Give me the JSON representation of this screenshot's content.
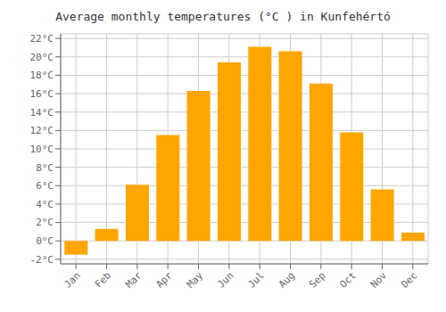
{
  "chart_data": {
    "type": "bar",
    "title": "Average monthly temperatures (°C ) in Kunfehértó",
    "categories": [
      "Jan",
      "Feb",
      "Mar",
      "Apr",
      "May",
      "Jun",
      "Jul",
      "Aug",
      "Sep",
      "Oct",
      "Nov",
      "Dec"
    ],
    "values": [
      -1.5,
      1.3,
      6.1,
      11.5,
      16.3,
      19.4,
      21.1,
      20.6,
      17.1,
      11.8,
      5.6,
      0.9
    ],
    "color": "#FFA500",
    "ylim": [
      -2.5,
      22.5
    ],
    "yticks": [
      {
        "value": -2,
        "label": "-2°C"
      },
      {
        "value": 0,
        "label": "0°C"
      },
      {
        "value": 2,
        "label": "2°C"
      },
      {
        "value": 4,
        "label": "4°C"
      },
      {
        "value": 6,
        "label": "6°C"
      },
      {
        "value": 8,
        "label": "8°C"
      },
      {
        "value": 10,
        "label": "10°C"
      },
      {
        "value": 12,
        "label": "12°C"
      },
      {
        "value": 14,
        "label": "14°C"
      },
      {
        "value": 16,
        "label": "16°C"
      },
      {
        "value": 18,
        "label": "18°C"
      },
      {
        "value": 20,
        "label": "20°C"
      },
      {
        "value": 22,
        "label": "22°C"
      }
    ],
    "grid": true
  }
}
